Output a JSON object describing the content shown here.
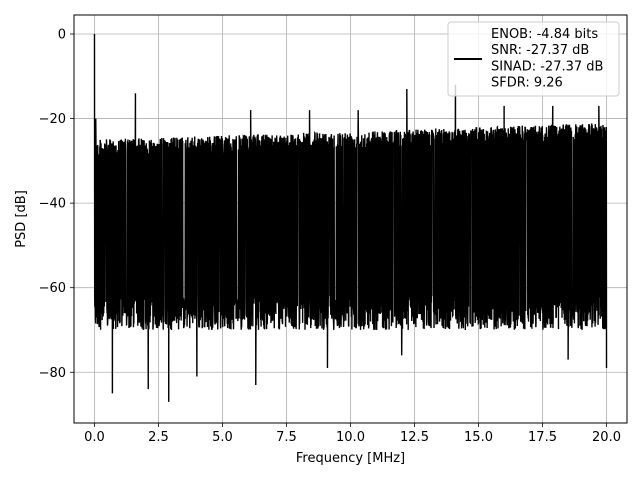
{
  "chart_data": {
    "type": "line",
    "title": "",
    "xlabel": "Frequency [MHz]",
    "ylabel": "PSD [dB]",
    "xlim": [
      -0.8,
      20.8
    ],
    "ylim": [
      -92,
      4.5
    ],
    "xticks": [
      0.0,
      2.5,
      5.0,
      7.5,
      10.0,
      12.5,
      15.0,
      17.5,
      20.0
    ],
    "xtick_labels": [
      "0.0",
      "2.5",
      "5.0",
      "7.5",
      "10.0",
      "12.5",
      "15.0",
      "17.5",
      "20.0"
    ],
    "yticks": [
      0,
      -20,
      -40,
      -60,
      -80
    ],
    "ytick_labels": [
      "0",
      "−20",
      "−40",
      "−60",
      "−80"
    ],
    "grid": true,
    "legend_position": "top-right",
    "series": [
      {
        "name": "ENOB: -4.84 bits\nSNR: -27.37 dB\nSINAD: -27.37 dB\nSFDR: 9.26",
        "color": "#000000",
        "x_range": [
          0,
          20
        ],
        "noise_top_at_start": -25,
        "noise_top_at_end": -21,
        "noise_bottom_range": [
          -70,
          -62
        ],
        "spikes": [
          {
            "x": 0.0,
            "y": 0
          },
          {
            "x": 0.05,
            "y": -20
          },
          {
            "x": 1.6,
            "y": -14
          },
          {
            "x": 6.1,
            "y": -18
          },
          {
            "x": 8.4,
            "y": -18
          },
          {
            "x": 10.3,
            "y": -18
          },
          {
            "x": 12.2,
            "y": -13
          },
          {
            "x": 14.1,
            "y": -12
          },
          {
            "x": 16.0,
            "y": -17
          },
          {
            "x": 17.9,
            "y": -17
          },
          {
            "x": 19.7,
            "y": -17
          },
          {
            "x": 0.7,
            "y": -85
          },
          {
            "x": 2.1,
            "y": -84
          },
          {
            "x": 2.9,
            "y": -87
          },
          {
            "x": 4.0,
            "y": -81
          },
          {
            "x": 6.3,
            "y": -83
          },
          {
            "x": 9.1,
            "y": -79
          },
          {
            "x": 12.0,
            "y": -76
          },
          {
            "x": 18.5,
            "y": -77
          },
          {
            "x": 20.0,
            "y": -79
          }
        ]
      }
    ]
  }
}
